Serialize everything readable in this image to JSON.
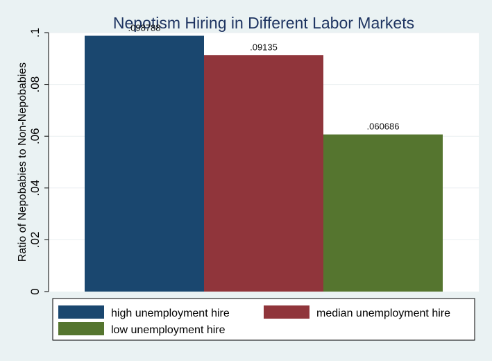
{
  "chart_data": {
    "type": "bar",
    "title": "Nepotism Hiring in Different Labor Markets",
    "ylabel": "Ratio of Nepobabies to Non-Nepobabies",
    "xlabel": "",
    "ylim": [
      0,
      0.1
    ],
    "yticks": [
      {
        "value": 0,
        "label": "0"
      },
      {
        "value": 0.02,
        "label": ".02"
      },
      {
        "value": 0.04,
        "label": ".04"
      },
      {
        "value": 0.06,
        "label": ".06"
      },
      {
        "value": 0.08,
        "label": ".08"
      },
      {
        "value": 0.1,
        "label": ".1"
      }
    ],
    "grid": true,
    "legend_position": "bottom",
    "series": [
      {
        "name": "high unemployment hire",
        "value": 0.098788,
        "value_label": ".098788",
        "color": "#1a476f"
      },
      {
        "name": "median unemployment hire",
        "value": 0.09135,
        "value_label": ".09135",
        "color": "#90353b"
      },
      {
        "name": "low unemployment hire",
        "value": 0.060686,
        "value_label": ".060686",
        "color": "#55752f"
      }
    ]
  }
}
